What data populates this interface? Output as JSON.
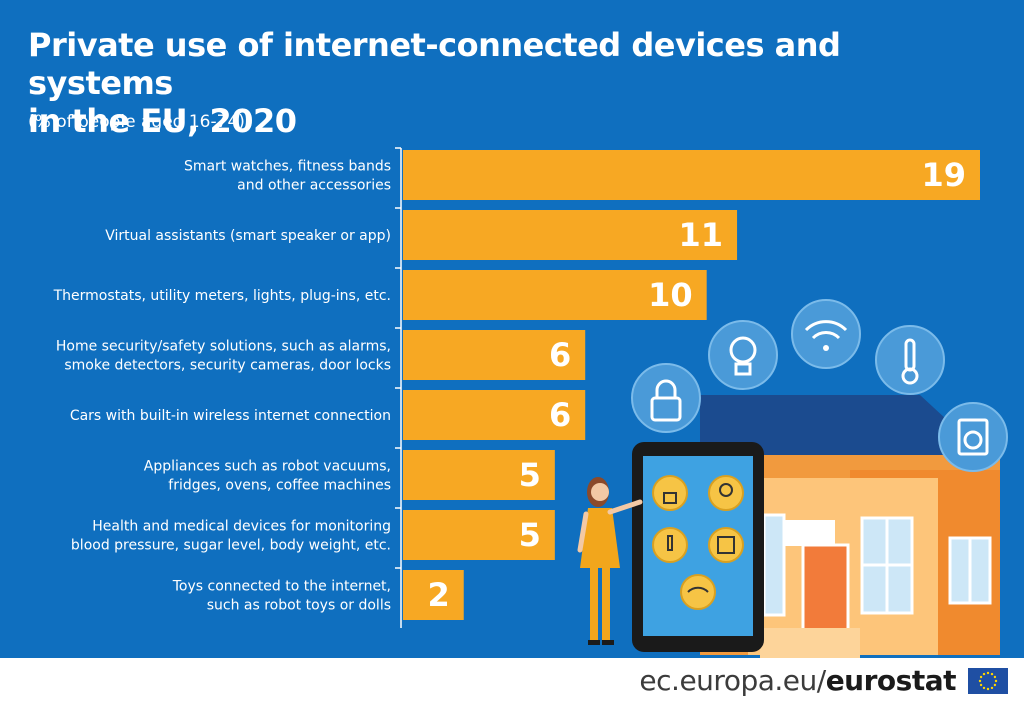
{
  "chart_data": {
    "type": "bar",
    "orientation": "horizontal",
    "title": "Private use of internet-connected devices and systems in the EU, 2020",
    "title_lines": [
      "Private use of internet-connected devices and systems",
      "in the EU, 2020"
    ],
    "subtitle": "(% of people aged 16-74)",
    "categories": [
      [
        "Smart watches, fitness bands",
        "and other accessories"
      ],
      [
        "Virtual assistants (smart speaker or app)"
      ],
      [
        "Thermostats, utility meters, lights, plug-ins, etc."
      ],
      [
        "Home security/safety solutions, such as alarms,",
        "smoke detectors, security cameras, door locks"
      ],
      [
        "Cars with built-in wireless internet connection"
      ],
      [
        "Appliances such as robot vacuums,",
        "fridges, ovens, coffee machines"
      ],
      [
        "Health and medical devices for monitoring",
        "blood pressure, sugar level, body weight, etc."
      ],
      [
        "Toys connected to the internet,",
        "such as robot toys or dolls"
      ]
    ],
    "values": [
      19,
      11,
      10,
      6,
      6,
      5,
      5,
      2
    ],
    "xlim": [
      0,
      19
    ],
    "grid": false,
    "bar_color": "#f7a823",
    "background_color": "#0f6fbf"
  },
  "footer": {
    "link": "ec.europa.eu/",
    "brand": "eurostat"
  },
  "illustration": {
    "icons": [
      "lock-icon",
      "lightbulb-icon",
      "wifi-icon",
      "thermometer-icon",
      "washing-machine-icon"
    ]
  }
}
